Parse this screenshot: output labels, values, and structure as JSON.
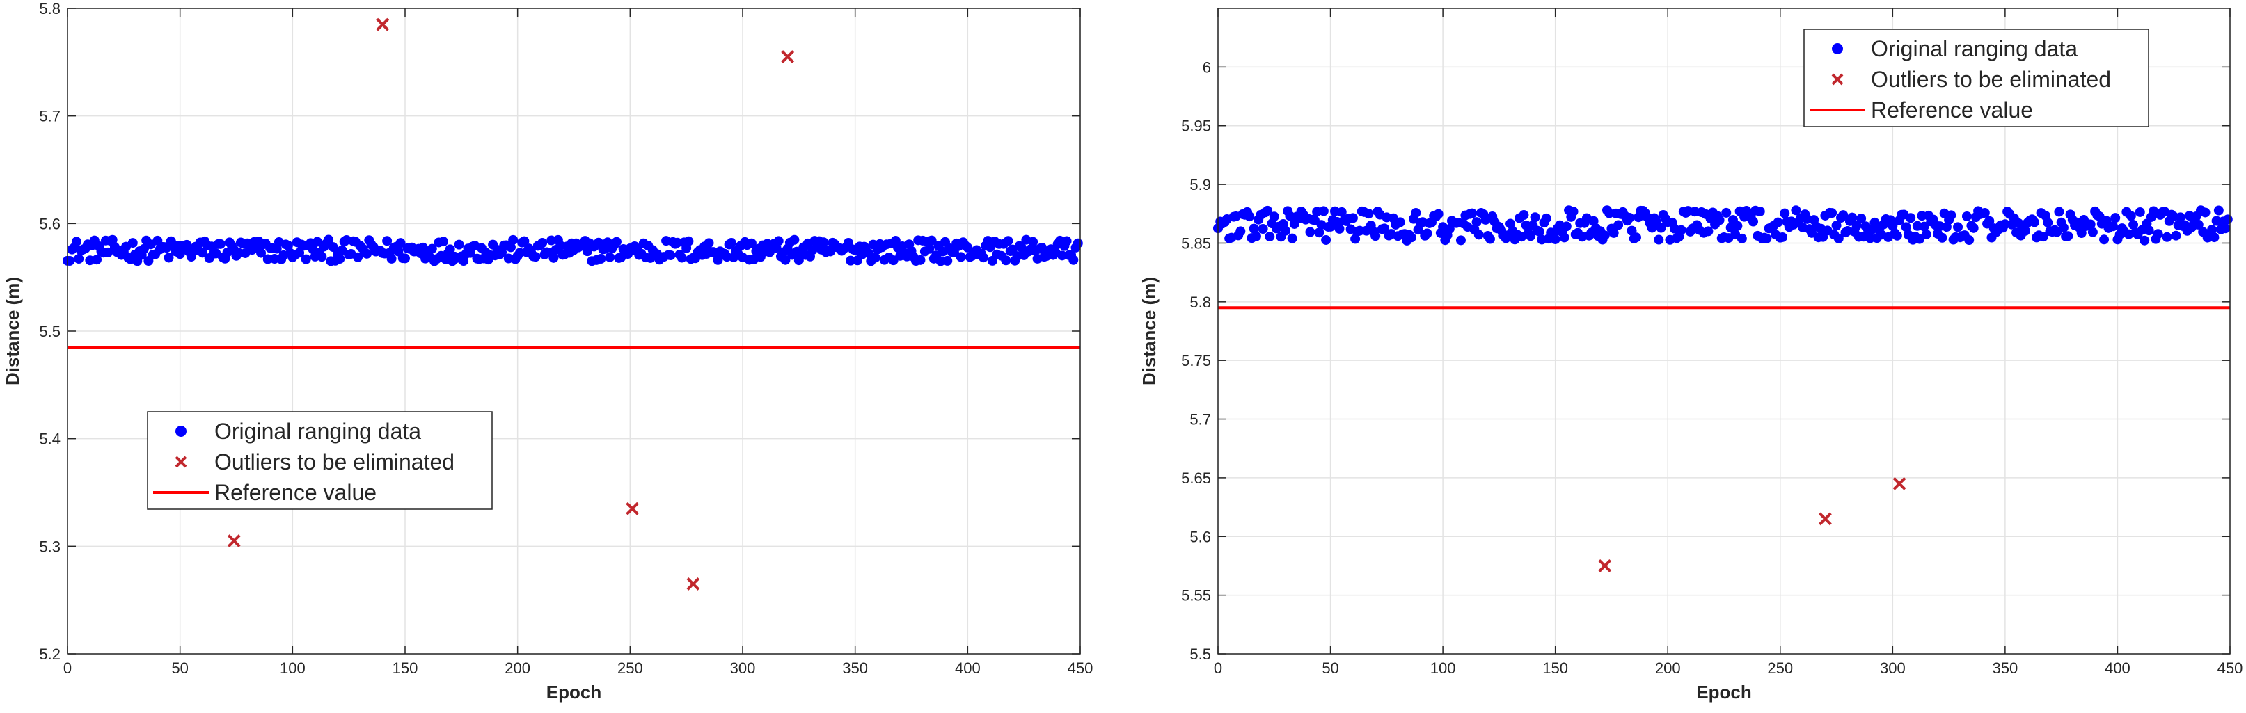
{
  "chart_data": [
    {
      "type": "scatter",
      "xlabel": "Epoch",
      "ylabel": "Distance (m)",
      "xlim": [
        0,
        450
      ],
      "ylim": [
        5.2,
        5.8
      ],
      "xticks": [
        "0",
        "50",
        "100",
        "150",
        "200",
        "250",
        "300",
        "350",
        "400",
        "450"
      ],
      "yticks": [
        "5.2",
        "5.3",
        "5.4",
        "5.5",
        "5.6",
        "5.7",
        "5.8"
      ],
      "grid": true,
      "legend_position": "center-left",
      "series": [
        {
          "name": "Original ranging data",
          "kind": "points",
          "color": "#0000ff",
          "n": 450,
          "min": 5.565,
          "max": 5.585
        },
        {
          "name": "Outliers to be eliminated",
          "kind": "crosses",
          "color": "#c1272d",
          "points": [
            [
              74,
              5.305
            ],
            [
              140,
              5.785
            ],
            [
              251,
              5.335
            ],
            [
              278,
              5.265
            ],
            [
              320,
              5.755
            ]
          ]
        },
        {
          "name": "Reference value",
          "kind": "line",
          "color": "#ff0000",
          "value": 5.485
        }
      ]
    },
    {
      "type": "scatter",
      "xlabel": "Epoch",
      "ylabel": "Distance (m)",
      "xlim": [
        0,
        450
      ],
      "ylim": [
        5.5,
        6.05
      ],
      "xticks": [
        "0",
        "50",
        "100",
        "150",
        "200",
        "250",
        "300",
        "350",
        "400",
        "450"
      ],
      "yticks": [
        "5.5",
        "5.55",
        "5.6",
        "5.65",
        "5.7",
        "5.75",
        "5.8",
        "5.85",
        "5.9",
        "5.95",
        "6"
      ],
      "grid": true,
      "legend_position": "top-right",
      "series": [
        {
          "name": "Original ranging data",
          "kind": "points",
          "color": "#0000ff",
          "n": 450,
          "min": 5.852,
          "max": 5.878
        },
        {
          "name": "Outliers to be eliminated",
          "kind": "crosses",
          "color": "#c1272d",
          "points": [
            [
              172,
              5.575
            ],
            [
              270,
              5.615
            ],
            [
              303,
              5.645
            ]
          ]
        },
        {
          "name": "Reference value",
          "kind": "line",
          "color": "#ff0000",
          "value": 5.795
        }
      ]
    }
  ]
}
